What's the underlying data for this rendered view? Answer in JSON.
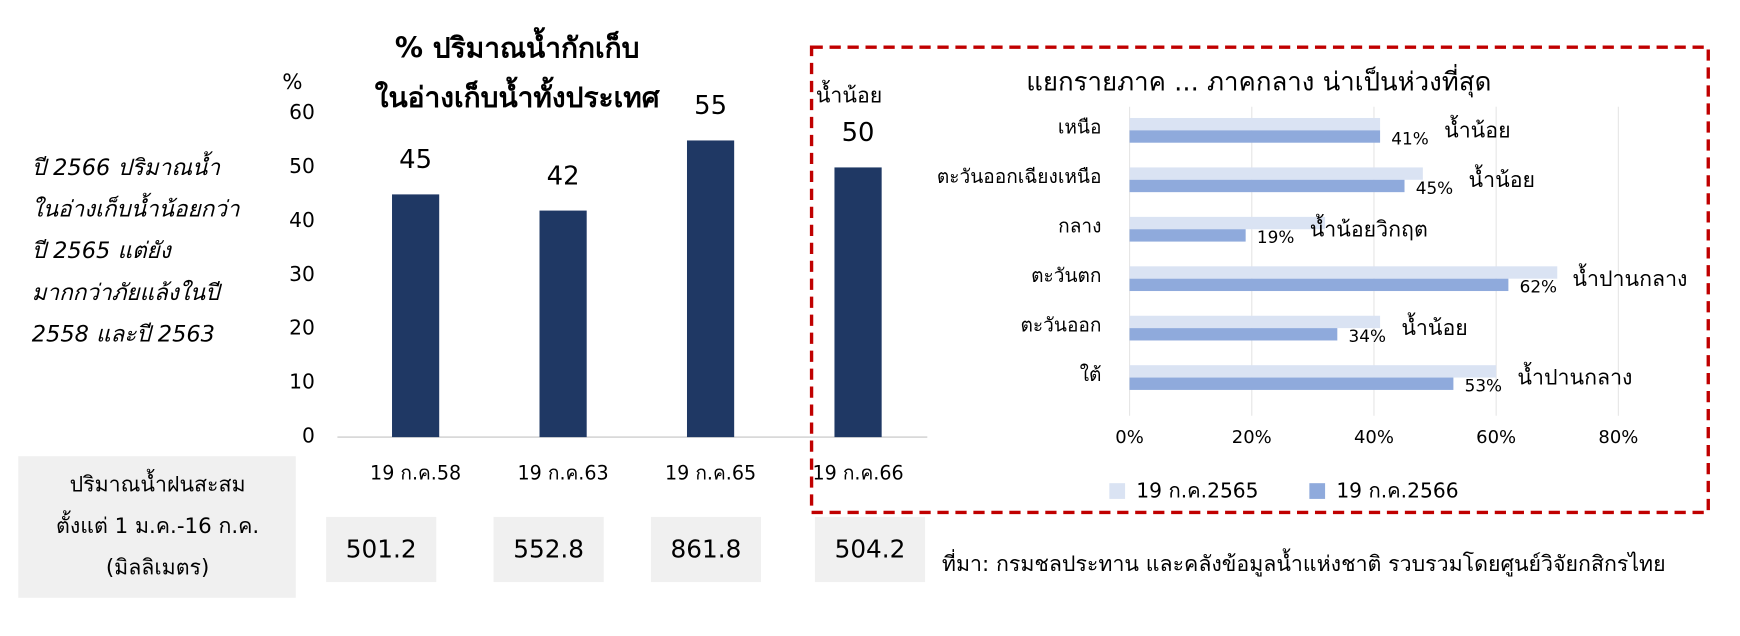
{
  "chart_data": [
    {
      "type": "bar",
      "title": [
        "% ปริมาณน้ำกักเก็บ",
        "ในอ่างเก็บน้ำทั้งประเทศ"
      ],
      "y_label": "%",
      "categories": [
        "19 ก.ค.58",
        "19 ก.ค.63",
        "19 ก.ค.65",
        "19 ก.ค.66"
      ],
      "values": [
        45,
        42,
        55,
        50
      ],
      "color": "#1f3864",
      "ylim": [
        0,
        60
      ],
      "yticks": [
        0,
        10,
        20,
        30,
        40,
        50,
        60
      ],
      "annotation": "น้ำน้อย"
    },
    {
      "type": "hbar",
      "title": "แยกรายภาค ... ภาคกลาง น่าเป็นห่วงที่สุด",
      "categories": [
        "เหนือ",
        "ตะวันออกเฉียงเหนือ",
        "กลาง",
        "ตะวันตก",
        "ตะวันออก",
        "ใต้"
      ],
      "series": [
        {
          "name": "19 ก.ค.2565",
          "color": "#dae3f3",
          "values": [
            41,
            48,
            32,
            70,
            41,
            60
          ]
        },
        {
          "name": "19 ก.ค.2566",
          "color": "#8faadc",
          "values": [
            41,
            45,
            19,
            62,
            34,
            53
          ],
          "value_labels": [
            "41%",
            "45%",
            "19%",
            "62%",
            "34%",
            "53%"
          ]
        }
      ],
      "status": [
        "น้ำน้อย",
        "น้ำน้อย",
        "น้ำน้อยวิกฤต",
        "น้ำปานกลาง",
        "น้ำน้อย",
        "น้ำปานกลาง"
      ],
      "xlim": [
        0,
        80
      ],
      "xticks": [
        {
          "value": 0,
          "label": "0%"
        },
        {
          "value": 20,
          "label": "20%"
        },
        {
          "value": 40,
          "label": "40%"
        },
        {
          "value": 60,
          "label": "60%"
        },
        {
          "value": 80,
          "label": "80%"
        }
      ],
      "grid": true,
      "legend": "bottom"
    }
  ],
  "note": [
    "ปี 2566 ปริมาณน้ำ",
    "ในอ่างเก็บน้ำน้อยกว่า",
    "ปี 2565 แต่ยัง",
    "มากกว่าภัยแล้งในปี",
    "2558 และปี 2563"
  ],
  "rainfall": {
    "label": [
      "ปริมาณน้ำฝนสะสม",
      "ตั้งแต่ 1 ม.ค.-16 ก.ค.",
      "(มิลลิเมตร)"
    ],
    "values": [
      501.2,
      552.8,
      861.8,
      504.2
    ]
  },
  "source": "ที่มา: กรมชลประทาน และคลังข้อมูลน้ำแห่งชาติ รวบรวมโดยศูนย์วิจัยกสิกรไทย"
}
